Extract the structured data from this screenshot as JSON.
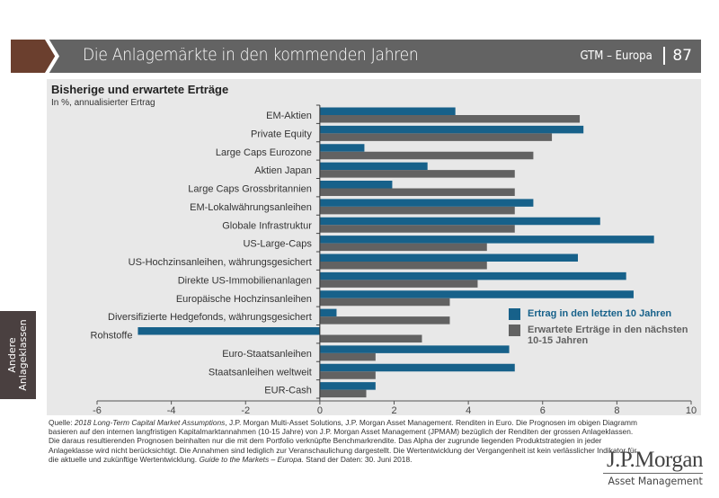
{
  "header": {
    "title": "Die Anlagemärkte in den kommenden Jahren",
    "series_name": "GTM – Europa",
    "page_number": "87"
  },
  "side_tab": {
    "line1": "Andere",
    "line2": "Anlageklassen"
  },
  "colors": {
    "header_brown": "#6b3f2e",
    "header_grey": "#636363",
    "series_blue": "#17618a",
    "series_grey": "#626262",
    "panel_bg": "#e8e8e8"
  },
  "chart_data": {
    "type": "bar",
    "orientation": "horizontal",
    "title": "Bisherige und erwartete Erträge",
    "subtitle": "In %, annualisierter Ertrag",
    "xlabel": "",
    "ylabel": "",
    "xlim": [
      -6,
      10
    ],
    "xticks": [
      -6,
      -4,
      -2,
      0,
      2,
      4,
      6,
      8,
      10
    ],
    "grid": false,
    "legend_position": "right-middle",
    "categories": [
      "EM-Aktien",
      "Private Equity",
      "Large Caps Eurozone",
      "Aktien Japan",
      "Large Caps Grossbritannien",
      "EM-Lokalwährungsanleihen",
      "Globale Infrastruktur",
      "US-Large-Caps",
      "US-Hochzinsanleihen, währungsgesichert",
      "Direkte US-Immobilienanlagen",
      "Europäische Hochzinsanleihen",
      "Diversifizierte Hedgefonds, währungsgesichert",
      "Rohstoffe",
      "Euro-Staatsanleihen",
      "Staatsanleihen weltweit",
      "EUR-Cash"
    ],
    "series": [
      {
        "name": "Ertrag in den letzten 10 Jahren",
        "color": "#17618a",
        "values": [
          3.65,
          7.1,
          1.2,
          2.9,
          1.95,
          5.75,
          7.55,
          9.0,
          6.95,
          8.25,
          8.45,
          0.45,
          -4.9,
          5.1,
          5.25,
          1.5
        ]
      },
      {
        "name": "Erwartete Erträge in den nächsten 10-15 Jahren",
        "color": "#626262",
        "values": [
          7.0,
          6.25,
          5.75,
          5.25,
          5.25,
          5.25,
          5.25,
          4.5,
          4.5,
          4.25,
          3.5,
          3.5,
          2.75,
          1.5,
          1.5,
          1.25
        ]
      }
    ]
  },
  "legend": {
    "item1": "Ertrag in den letzten 10 Jahren",
    "item2": "Erwartete Erträge in den nächsten 10-15 Jahren"
  },
  "footnote": {
    "prefix": "Quelle: ",
    "source_italic": "2018 Long-Term Capital Market Assumptions",
    "body": ", J.P. Morgan Multi-Asset Solutions, J.P. Morgan Asset Management. Renditen in Euro. Die Prognosen im obigen Diagramm basieren auf den internen langfristigen Kapitalmarktannahmen (10-15 Jahre) von J.P. Morgan Asset Management (JPMAM) bezüglich der Renditen der grossen Anlageklassen. Die daraus resultierenden Prognosen beinhalten nur die mit dem Portfolio verknüpfte Benchmarkrendite. Das Alpha der zugrunde liegenden Produktstrategien in jeder Anlageklasse wird nicht berücksichtigt. Die Annahmen sind lediglich zur Veranschaulichung dargestellt. Die Wertentwicklung der Vergangenheit ist kein verlässlicher Indikator für die aktuelle und zukünftige Wertentwicklung. ",
    "guide_italic": "Guide to the Markets – Europa",
    "suffix": ". Stand der Daten: 30. Juni 2018."
  },
  "logo": {
    "brand": "J.P.Morgan",
    "division": "Asset Management"
  }
}
